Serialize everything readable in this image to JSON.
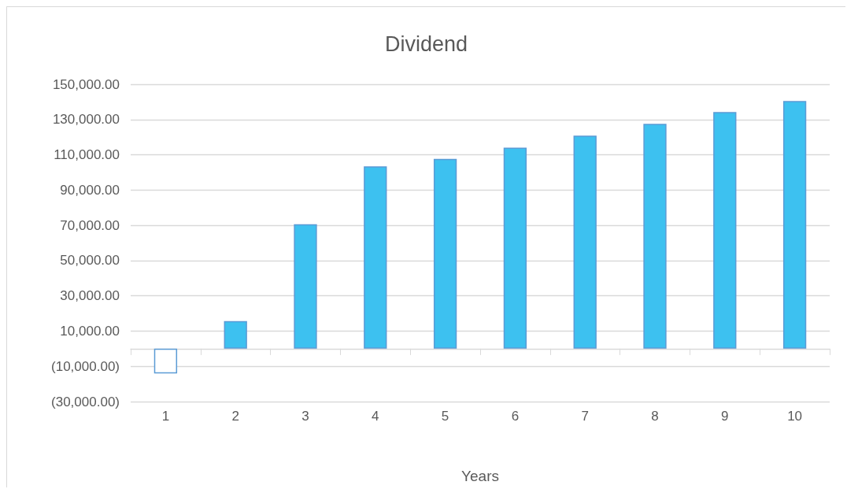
{
  "chart_data": {
    "type": "bar",
    "title": "Dividend",
    "xlabel": "Years",
    "categories": [
      "1",
      "2",
      "3",
      "4",
      "5",
      "6",
      "7",
      "8",
      "9",
      "10"
    ],
    "values": [
      -14000,
      15700,
      70600,
      103400,
      107700,
      114100,
      120900,
      127600,
      134300,
      140500
    ],
    "colors": [
      "#ffffff",
      "#3dc1f0",
      "#3dc1f0",
      "#3dc1f0",
      "#3dc1f0",
      "#3dc1f0",
      "#3dc1f0",
      "#3dc1f0",
      "#3dc1f0",
      "#3dc1f0"
    ],
    "ylim": [
      -30000,
      150000
    ],
    "yticks": [
      {
        "value": -30000,
        "label": "(30,000.00)"
      },
      {
        "value": -10000,
        "label": "(10,000.00)"
      },
      {
        "value": 10000,
        "label": "10,000.00"
      },
      {
        "value": 30000,
        "label": "30,000.00"
      },
      {
        "value": 50000,
        "label": "50,000.00"
      },
      {
        "value": 70000,
        "label": "70,000.00"
      },
      {
        "value": 90000,
        "label": "90,000.00"
      },
      {
        "value": 110000,
        "label": "110,000.00"
      },
      {
        "value": 130000,
        "label": "130,000.00"
      },
      {
        "value": 150000,
        "label": "150,000.00"
      }
    ],
    "grid": "y"
  }
}
